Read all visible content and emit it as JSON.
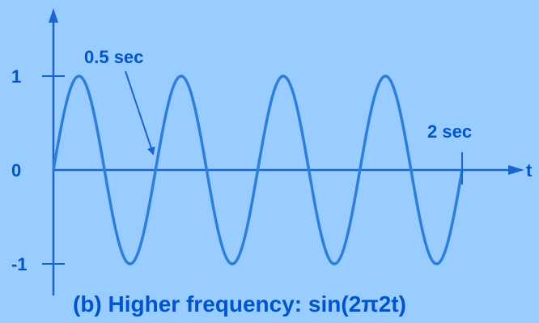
{
  "colors": {
    "background": "#99CCFF",
    "axis": "#1A66CC",
    "curve": "#2E7FD9",
    "text": "#0055CC",
    "annotation": "#1A66CC"
  },
  "chart_data": {
    "type": "line",
    "title": "(b) Higher frequency:  sin(2π2t)",
    "xlabel": "t",
    "ylabel": "",
    "function": "sin(2*pi*2*t)",
    "frequency_hz": 2,
    "xlim": [
      0,
      2
    ],
    "ylim": [
      -1,
      1
    ],
    "yticks": [
      {
        "value": 1,
        "label": "1"
      },
      {
        "value": 0,
        "label": "0"
      },
      {
        "value": -1,
        "label": "-1"
      }
    ],
    "annotations": [
      {
        "text": "0.5 sec",
        "x": 0.5,
        "y": 0
      },
      {
        "text": "2 sec",
        "x": 2.0,
        "y": 0
      }
    ],
    "grid": false,
    "legend": "none"
  }
}
